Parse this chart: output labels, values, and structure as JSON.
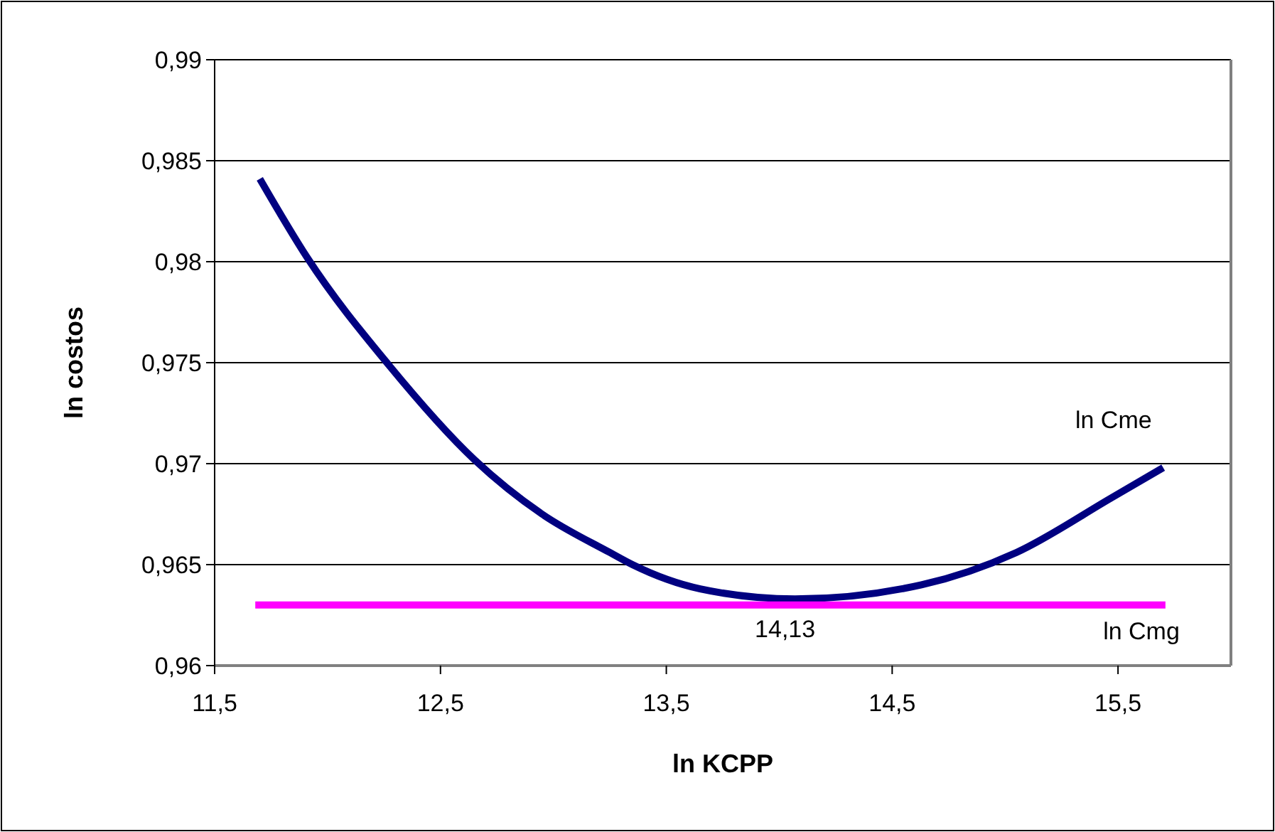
{
  "chart_data": {
    "type": "line",
    "xlabel": "ln KCPP",
    "ylabel": "ln costos",
    "series": [
      {
        "name": "ln Cme",
        "color": "#000080",
        "x": [
          11.7,
          11.91,
          12.27,
          12.65,
          12.95,
          13.25,
          13.35,
          13.65,
          14.07,
          14.63,
          15.05,
          15.47,
          15.7
        ],
        "values": [
          0.9841,
          0.9802,
          0.9749,
          0.9702,
          0.9675,
          0.9656,
          0.965,
          0.9638,
          0.9633,
          0.964,
          0.9656,
          0.9683,
          0.9698
        ]
      },
      {
        "name": "ln Cmg",
        "color": "#ff00ff",
        "x": [
          11.68,
          15.71
        ],
        "values": [
          0.963,
          0.963
        ]
      }
    ],
    "annotations": [
      "14,13"
    ],
    "xlim": [
      11.5,
      16
    ],
    "xticks": [
      {
        "value": 11.5,
        "label": "11,5"
      },
      {
        "value": 12.5,
        "label": "12,5"
      },
      {
        "value": 13.5,
        "label": "13,5"
      },
      {
        "value": 14.5,
        "label": "14,5"
      },
      {
        "value": 15.5,
        "label": "15,5"
      }
    ],
    "ylim": [
      0.96,
      0.99
    ],
    "yticks": [
      {
        "value": 0.96,
        "label": "0,96"
      },
      {
        "value": 0.965,
        "label": "0,965"
      },
      {
        "value": 0.97,
        "label": "0,97"
      },
      {
        "value": 0.975,
        "label": "0,975"
      },
      {
        "value": 0.98,
        "label": "0,98"
      },
      {
        "value": 0.985,
        "label": "0,985"
      },
      {
        "value": 0.99,
        "label": "0,99"
      }
    ],
    "grid": "y",
    "marker": "none",
    "line_style": "solid"
  }
}
